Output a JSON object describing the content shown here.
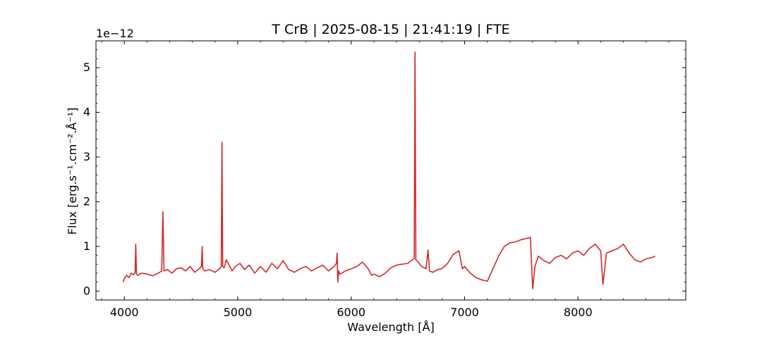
{
  "chart_data": {
    "type": "line",
    "title": "T CrB | 2025-08-15 | 21:41:19 | FTE",
    "xlabel": "Wavelength [Å]",
    "ylabel": "Flux [erg.s⁻¹.cm⁻².Å⁻¹]",
    "y_offset_label": "1e−12",
    "y_scale": 1e-12,
    "xlim": [
      3750,
      8950
    ],
    "ylim": [
      -0.2,
      5.6
    ],
    "x_ticks": [
      4000,
      5000,
      6000,
      7000,
      8000
    ],
    "y_ticks": [
      0,
      1,
      2,
      3,
      4,
      5
    ],
    "x_tick_labels": [
      "4000",
      "5000",
      "6000",
      "7000",
      "8000"
    ],
    "y_tick_labels": [
      "0",
      "1",
      "2",
      "3",
      "4",
      "5"
    ],
    "grid": false,
    "line_color": "#d62728",
    "series": [
      {
        "x": [
          3990,
          4000,
          4020,
          4040,
          4060,
          4080,
          4095,
          4101,
          4107,
          4120,
          4150,
          4200,
          4250,
          4300,
          4330,
          4340,
          4350,
          4380,
          4420,
          4460,
          4500,
          4540,
          4580,
          4620,
          4660,
          4680,
          4686,
          4692,
          4710,
          4750,
          4800,
          4840,
          4855,
          4861,
          4867,
          4880,
          4900,
          4920,
          4950,
          4980,
          5020,
          5060,
          5100,
          5150,
          5200,
          5250,
          5300,
          5350,
          5400,
          5450,
          5500,
          5550,
          5600,
          5650,
          5700,
          5750,
          5800,
          5850,
          5870,
          5876,
          5882,
          5890,
          5900,
          5950,
          6000,
          6050,
          6100,
          6150,
          6180,
          6200,
          6250,
          6300,
          6350,
          6400,
          6450,
          6500,
          6540,
          6556,
          6563,
          6570,
          6590,
          6620,
          6660,
          6678,
          6690,
          6720,
          6760,
          6800,
          6850,
          6900,
          6950,
          6980,
          7000,
          7050,
          7100,
          7150,
          7200,
          7250,
          7300,
          7350,
          7400,
          7450,
          7500,
          7550,
          7580,
          7600,
          7620,
          7650,
          7700,
          7750,
          7800,
          7850,
          7900,
          7950,
          8000,
          8050,
          8100,
          8150,
          8200,
          8220,
          8250,
          8300,
          8350,
          8400,
          8450,
          8500,
          8550,
          8600,
          8650,
          8680
        ],
        "values": [
          0.2,
          0.28,
          0.35,
          0.3,
          0.4,
          0.36,
          0.42,
          1.05,
          0.38,
          0.35,
          0.4,
          0.38,
          0.34,
          0.4,
          0.45,
          1.78,
          0.45,
          0.48,
          0.4,
          0.5,
          0.52,
          0.45,
          0.55,
          0.42,
          0.5,
          0.55,
          1.0,
          0.5,
          0.45,
          0.48,
          0.42,
          0.5,
          0.55,
          3.33,
          0.55,
          0.52,
          0.7,
          0.6,
          0.45,
          0.55,
          0.62,
          0.48,
          0.58,
          0.4,
          0.55,
          0.42,
          0.62,
          0.5,
          0.68,
          0.48,
          0.42,
          0.5,
          0.55,
          0.45,
          0.52,
          0.58,
          0.45,
          0.55,
          0.62,
          0.85,
          0.2,
          0.45,
          0.38,
          0.45,
          0.5,
          0.55,
          0.65,
          0.5,
          0.35,
          0.38,
          0.32,
          0.4,
          0.52,
          0.58,
          0.6,
          0.62,
          0.7,
          0.72,
          5.35,
          0.7,
          0.65,
          0.55,
          0.5,
          0.92,
          0.45,
          0.42,
          0.48,
          0.5,
          0.62,
          0.82,
          0.9,
          0.5,
          0.55,
          0.4,
          0.3,
          0.25,
          0.22,
          0.5,
          0.78,
          1.0,
          1.08,
          1.1,
          1.15,
          1.18,
          1.2,
          0.05,
          0.55,
          0.78,
          0.68,
          0.62,
          0.75,
          0.8,
          0.72,
          0.85,
          0.9,
          0.8,
          0.95,
          1.05,
          0.9,
          0.15,
          0.85,
          0.9,
          0.95,
          1.05,
          0.85,
          0.7,
          0.65,
          0.72,
          0.75,
          0.78
        ]
      }
    ]
  }
}
